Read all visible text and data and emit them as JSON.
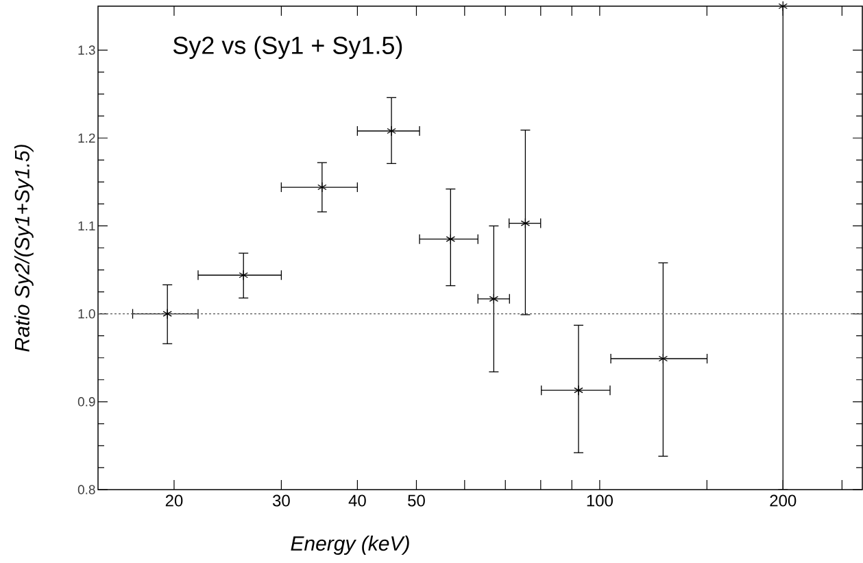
{
  "chart_data": {
    "type": "scatter",
    "title": "Sy2 vs (Sy1 + Sy1.5)",
    "xlabel": "Energy (keV)",
    "ylabel": "Ratio Sy2/(Sy1+Sy1.5)",
    "x": [
      19.5,
      26.0,
      35.0,
      45.5,
      56.9,
      67.0,
      75.5,
      92.3,
      127.1,
      200
    ],
    "values": [
      1.0,
      1.044,
      1.144,
      1.208,
      1.085,
      1.017,
      1.103,
      0.913,
      0.949,
      1.35
    ],
    "errors": [
      [
        0.966,
        1.033
      ],
      [
        1.018,
        1.069
      ],
      [
        1.116,
        1.172
      ],
      [
        1.171,
        1.246
      ],
      [
        1.032,
        1.142
      ],
      [
        0.934,
        1.1
      ],
      [
        0.999,
        1.209
      ],
      [
        0.842,
        0.987
      ],
      [
        0.838,
        1.058
      ],
      [
        0.8,
        1.35
      ]
    ],
    "xerrors": [
      [
        17.1,
        21.9
      ],
      [
        21.9,
        30.0
      ],
      [
        30.0,
        40.0
      ],
      [
        40.0,
        50.6
      ],
      [
        50.6,
        63.1
      ],
      [
        63.1,
        71.1
      ],
      [
        71.0,
        80.0
      ],
      [
        80.2,
        104.0
      ],
      [
        104.3,
        150.1
      ],
      null
    ],
    "color": "#000000",
    "marker": "cross",
    "log": "x",
    "xlim": [
      15,
      270
    ],
    "ylim": [
      0.8,
      1.35
    ],
    "xticks": [
      20,
      30,
      40,
      50,
      {
        "value": 60,
        "label": null
      },
      {
        "value": 70,
        "label": null
      },
      {
        "value": 80,
        "label": null
      },
      {
        "value": 90,
        "label": null
      },
      100,
      {
        "value": 150,
        "label": null
      },
      200,
      {
        "value": 250,
        "label": null
      }
    ],
    "yticks": [
      0.8,
      0.9,
      {
        "value": 1,
        "label": "1.0"
      },
      1.1,
      1.2,
      1.3
    ],
    "ref_lines": [
      {
        "axis": "y",
        "value": 1,
        "line_style": "dotted",
        "color": "#555555"
      }
    ]
  }
}
